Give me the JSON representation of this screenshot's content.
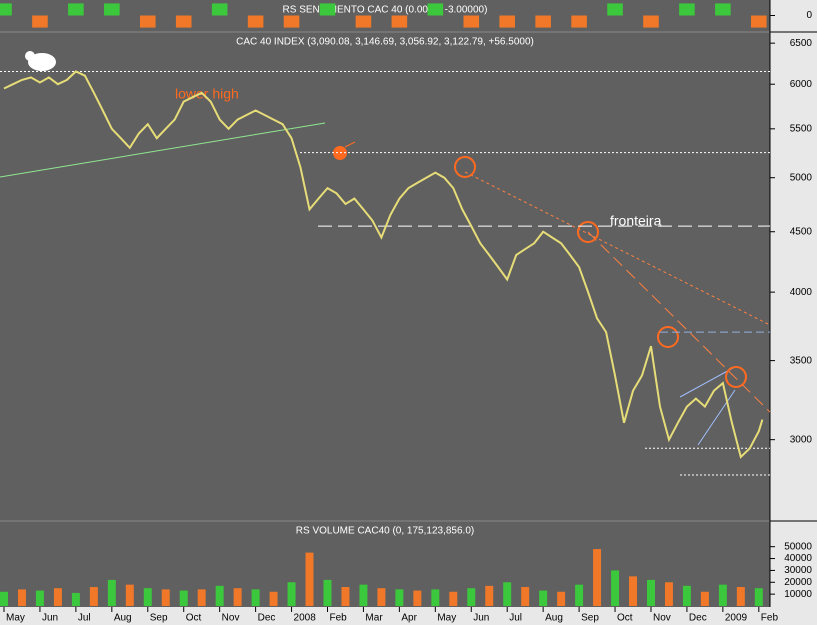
{
  "chart_data": [
    {
      "type": "bar",
      "title": "RS SENTIMENTO CAC 40 (0.0000, -3.00000)",
      "x": [
        0,
        1,
        2,
        3,
        4,
        5,
        6,
        7,
        8,
        9,
        10,
        11,
        12,
        13,
        14,
        15,
        16,
        17,
        18,
        19,
        20,
        21
      ],
      "values": [
        1,
        -1,
        1,
        1,
        -1,
        -1,
        1,
        -1,
        -1,
        1,
        -1,
        -1,
        1,
        -1,
        -1,
        -1,
        -1,
        1,
        -1,
        1,
        1,
        -1
      ],
      "up_color": "#3cc83c",
      "down_color": "#f07828",
      "xlim": [
        0,
        21.2
      ],
      "ylim": [
        -1.2,
        1.2
      ],
      "yticks": [
        0
      ]
    },
    {
      "type": "line",
      "title": "CAC 40 INDEX (3,090.08, 3,146.69, 3,056.92, 3,122.79, +56.5000)",
      "x": [
        0,
        0.25,
        0.5,
        0.75,
        1,
        1.25,
        1.5,
        1.75,
        2,
        2.25,
        2.5,
        2.75,
        3,
        3.25,
        3.5,
        3.75,
        4,
        4.25,
        4.5,
        4.75,
        5,
        5.25,
        5.5,
        5.75,
        6,
        6.25,
        6.5,
        6.75,
        7,
        7.25,
        7.5,
        7.75,
        8,
        8.25,
        8.5,
        8.75,
        9,
        9.25,
        9.5,
        9.75,
        10,
        10.25,
        10.5,
        10.75,
        11,
        11.25,
        11.5,
        11.75,
        12,
        12.25,
        12.5,
        12.75,
        13,
        13.25,
        13.5,
        13.75,
        14,
        14.25,
        14.5,
        14.75,
        15,
        15.25,
        15.5,
        15.75,
        16,
        16.25,
        16.5,
        16.75,
        17,
        17.25,
        17.5,
        17.75,
        18,
        18.25,
        18.5,
        18.75,
        19,
        19.25,
        19.5,
        19.75,
        20,
        20.25,
        20.5,
        20.75,
        21,
        21.1
      ],
      "values": [
        5950,
        6000,
        6050,
        6080,
        6020,
        6080,
        6000,
        6050,
        6150,
        6100,
        5900,
        5700,
        5500,
        5400,
        5300,
        5450,
        5550,
        5400,
        5500,
        5600,
        5800,
        5850,
        5900,
        5800,
        5600,
        5500,
        5600,
        5650,
        5700,
        5650,
        5600,
        5550,
        5400,
        5100,
        4700,
        4800,
        4900,
        4850,
        4750,
        4800,
        4700,
        4600,
        4450,
        4650,
        4800,
        4900,
        4950,
        5000,
        5050,
        5000,
        4900,
        4700,
        4550,
        4400,
        4300,
        4200,
        4100,
        4300,
        4350,
        4400,
        4500,
        4450,
        4400,
        4300,
        4200,
        4000,
        3800,
        3700,
        3400,
        3100,
        3300,
        3400,
        3600,
        3200,
        3000,
        3100,
        3200,
        3250,
        3200,
        3300,
        3350,
        3100,
        2900,
        2950,
        3050,
        3120
      ],
      "color": "#e6dc78",
      "log_scale": true,
      "xlim": [
        0,
        21.2
      ],
      "ylim": [
        2570,
        6630
      ],
      "yticks": [
        3000,
        3500,
        4000,
        4500,
        5000,
        5500,
        6000,
        6500
      ],
      "xticks": [
        {
          "value": 0,
          "label": "May"
        },
        {
          "value": 1,
          "label": "Jun"
        },
        {
          "value": 2,
          "label": "Jul"
        },
        {
          "value": 3,
          "label": "Aug"
        },
        {
          "value": 4,
          "label": "Sep"
        },
        {
          "value": 5,
          "label": "Oct"
        },
        {
          "value": 6,
          "label": "Nov"
        },
        {
          "value": 7,
          "label": "Dec"
        },
        {
          "value": 8,
          "label": "2008"
        },
        {
          "value": 9,
          "label": "Feb"
        },
        {
          "value": 10,
          "label": "Mar"
        },
        {
          "value": 11,
          "label": "Apr"
        },
        {
          "value": 12,
          "label": "May"
        },
        {
          "value": 13,
          "label": "Jun"
        },
        {
          "value": 14,
          "label": "Jul"
        },
        {
          "value": 15,
          "label": "Aug"
        },
        {
          "value": 16,
          "label": "Sep"
        },
        {
          "value": 17,
          "label": "Oct"
        },
        {
          "value": 18,
          "label": "Nov"
        },
        {
          "value": 19,
          "label": "Dec"
        },
        {
          "value": 20,
          "label": "2009"
        },
        {
          "value": 21,
          "label": "Feb"
        }
      ],
      "levels": [
        6150,
        5250,
        4550,
        2950,
        2800,
        3700
      ],
      "annotations": [
        "lower high",
        "fronteira"
      ]
    },
    {
      "type": "bar",
      "title": "RS VOLUME CAC40 (0, 175,123,856.0)",
      "x": [
        0,
        0.5,
        1,
        1.5,
        2,
        2.5,
        3,
        3.5,
        4,
        4.5,
        5,
        5.5,
        6,
        6.5,
        7,
        7.5,
        8,
        8.5,
        9,
        9.5,
        10,
        10.5,
        11,
        11.5,
        12,
        12.5,
        13,
        13.5,
        14,
        14.5,
        15,
        15.5,
        16,
        16.5,
        17,
        17.5,
        18,
        18.5,
        19,
        19.5,
        20,
        20.5,
        21
      ],
      "values": [
        12000,
        14000,
        13000,
        15000,
        11000,
        16000,
        22000,
        18000,
        15000,
        14000,
        13000,
        14000,
        17000,
        15000,
        14000,
        12000,
        20000,
        45000,
        22000,
        16000,
        18000,
        15000,
        14000,
        13000,
        14000,
        12000,
        15000,
        17000,
        20000,
        16000,
        13000,
        12000,
        18000,
        48000,
        30000,
        25000,
        22000,
        20000,
        17000,
        12000,
        18000,
        16000,
        15000
      ],
      "up_color": "#3cc83c",
      "down_color": "#f07828",
      "xlim": [
        0,
        21.2
      ],
      "ylim": [
        0,
        59000
      ],
      "yticks": [
        10000,
        20000,
        30000,
        40000,
        50000
      ]
    }
  ]
}
